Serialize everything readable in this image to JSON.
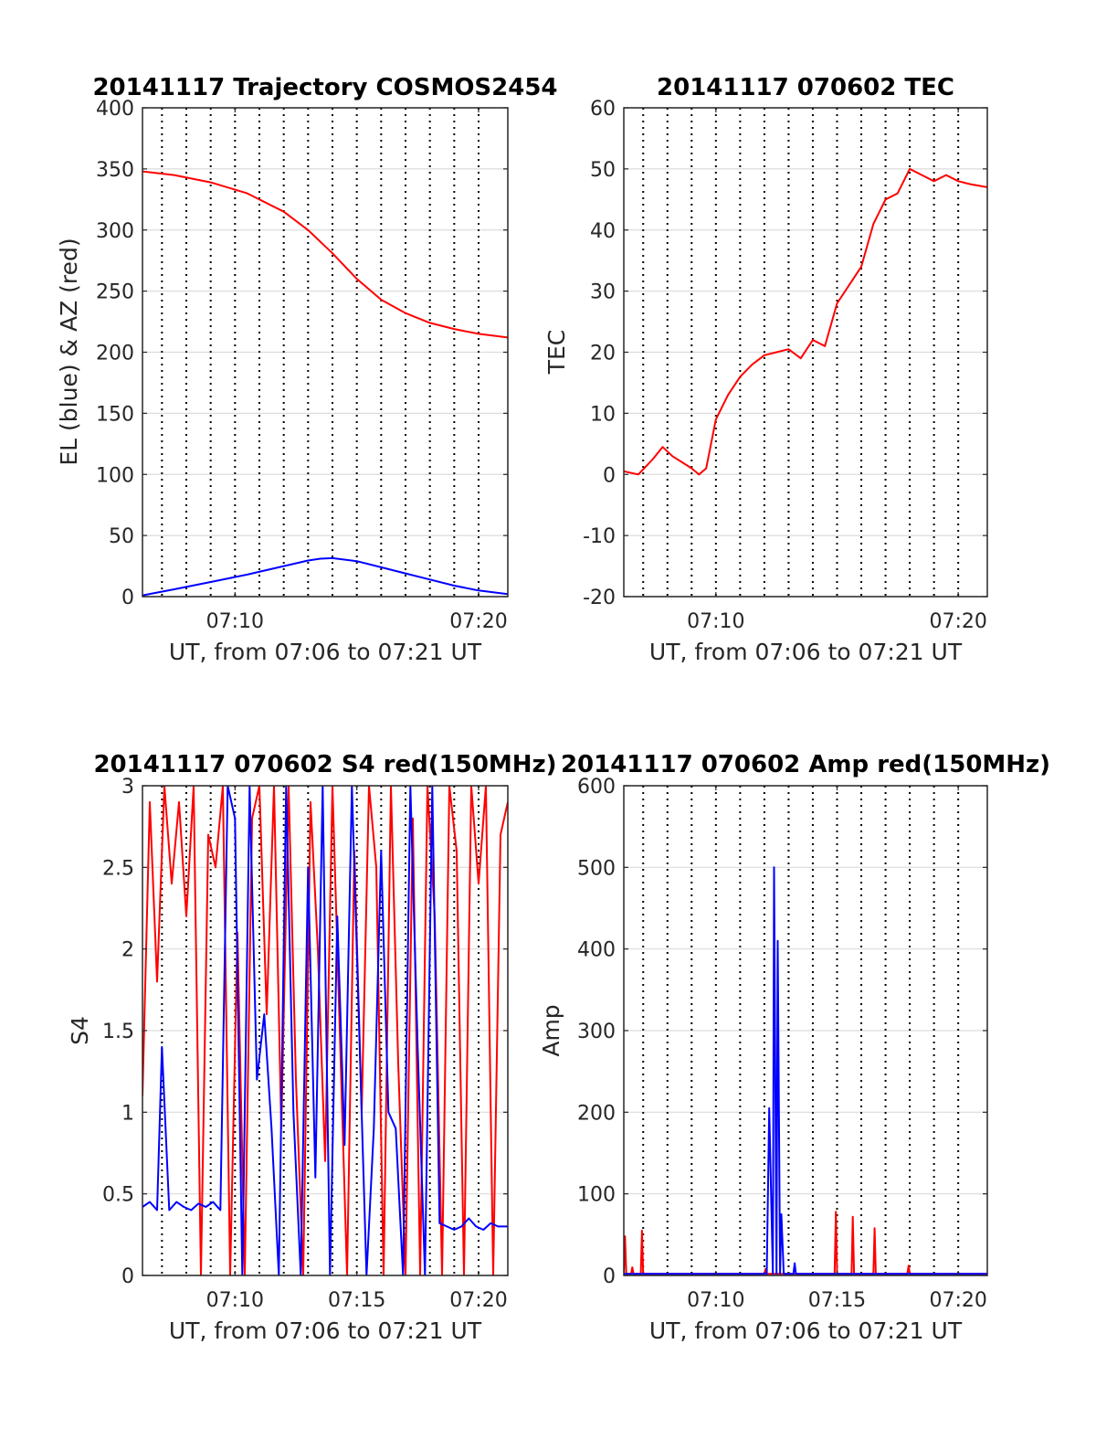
{
  "chart_data": [
    {
      "type": "line",
      "title": "20141117 Trajectory COSMOS2454",
      "xlabel": "UT, from 07:06 to 07:21 UT",
      "ylabel": "EL (blue) & AZ (red)",
      "xlim_minutes": [
        426.2,
        441.2
      ],
      "ylim": [
        0,
        400
      ],
      "yticks": [
        0,
        50,
        100,
        150,
        200,
        250,
        300,
        350,
        400
      ],
      "xticks": [
        {
          "minute": 430,
          "label": "07:10"
        },
        {
          "minute": 440,
          "label": "07:20"
        }
      ],
      "grid": true,
      "series": [
        {
          "color": "#ff0000",
          "x": [
            426.2,
            427.5,
            429,
            430.5,
            432,
            433,
            434,
            435,
            436,
            437,
            438,
            439,
            440,
            441.2
          ],
          "y": [
            348,
            345,
            339,
            330,
            315,
            300,
            281,
            260,
            243,
            232,
            224,
            219,
            215,
            212
          ]
        },
        {
          "color": "#0000ff",
          "x": [
            426.2,
            427.5,
            429,
            430.5,
            432,
            433,
            433.5,
            434,
            435,
            436,
            437,
            438,
            439,
            440,
            441.2
          ],
          "y": [
            1,
            6,
            12,
            18,
            25,
            29.5,
            31,
            31.5,
            29,
            24,
            19,
            14,
            9,
            5,
            2
          ]
        }
      ]
    },
    {
      "type": "line",
      "title": "20141117 070602 TEC",
      "xlabel": "UT, from 07:06 to 07:21 UT",
      "ylabel": "TEC",
      "xlim_minutes": [
        426.2,
        441.2
      ],
      "ylim": [
        -20,
        60
      ],
      "yticks": [
        -20,
        -10,
        0,
        10,
        20,
        30,
        40,
        50,
        60
      ],
      "xticks": [
        {
          "minute": 430,
          "label": "07:10"
        },
        {
          "minute": 440,
          "label": "07:20"
        }
      ],
      "grid": true,
      "series": [
        {
          "color": "#ff0000",
          "x": [
            426.2,
            426.8,
            427.4,
            427.8,
            428.2,
            428.6,
            429,
            429.3,
            429.6,
            430,
            430.5,
            431,
            431.5,
            432,
            432.5,
            433,
            433.5,
            434,
            434.5,
            435,
            435.5,
            436,
            436.5,
            437,
            437.5,
            438,
            438.5,
            439,
            439.5,
            440,
            440.5,
            441.2
          ],
          "y": [
            0.5,
            0,
            2.5,
            4.5,
            3,
            2,
            1,
            0,
            1,
            9,
            13,
            16,
            18,
            19.5,
            20,
            20.5,
            19,
            22,
            21,
            28,
            31,
            34,
            41,
            45,
            46,
            50,
            49,
            48,
            49,
            48,
            47.5,
            47
          ]
        }
      ]
    },
    {
      "type": "line",
      "title": "20141117 070602 S4 red(150MHz)",
      "xlabel": "UT, from 07:06 to 07:21 UT",
      "ylabel": "S4",
      "xlim_minutes": [
        426.2,
        441.2
      ],
      "ylim": [
        0,
        3
      ],
      "yticks": [
        0,
        0.5,
        1,
        1.5,
        2,
        2.5,
        3
      ],
      "xticks": [
        {
          "minute": 430,
          "label": "07:10"
        },
        {
          "minute": 435,
          "label": "07:15"
        },
        {
          "minute": 440,
          "label": "07:20"
        }
      ],
      "grid": true,
      "series": [
        {
          "color": "#ff0000",
          "x": [
            426.2,
            426.5,
            426.8,
            427.1,
            427.4,
            427.7,
            428.0,
            428.3,
            428.6,
            428.9,
            429.2,
            429.5,
            429.8,
            430.1,
            430.4,
            430.7,
            431.0,
            431.3,
            431.6,
            431.9,
            432.2,
            432.5,
            432.8,
            433.1,
            433.4,
            433.7,
            434.0,
            434.3,
            434.6,
            434.9,
            435.2,
            435.5,
            435.8,
            436.1,
            436.4,
            436.7,
            437.0,
            437.3,
            437.6,
            437.9,
            438.2,
            438.5,
            438.8,
            439.1,
            439.4,
            439.7,
            440.0,
            440.3,
            440.6,
            440.9,
            441.2
          ],
          "y": [
            1.1,
            2.9,
            1.8,
            3.0,
            2.4,
            2.9,
            2.2,
            3.0,
            0.0,
            2.7,
            2.5,
            3.0,
            0.0,
            2.1,
            0.0,
            2.8,
            3.0,
            1.6,
            3.0,
            0.9,
            3.0,
            1.2,
            0.0,
            2.9,
            2.0,
            0.7,
            3.0,
            1.5,
            0.0,
            2.6,
            1.0,
            3.0,
            2.5,
            0.0,
            3.0,
            1.3,
            0.0,
            2.8,
            0.0,
            3.0,
            2.2,
            0.0,
            3.0,
            2.6,
            0.0,
            3.0,
            2.4,
            3.0,
            0.0,
            2.7,
            2.9
          ]
        },
        {
          "color": "#0000ff",
          "x": [
            426.2,
            426.5,
            426.8,
            427.0,
            427.3,
            427.6,
            427.9,
            428.2,
            428.5,
            428.8,
            429.1,
            429.4,
            429.7,
            430.0,
            430.3,
            430.6,
            430.9,
            431.2,
            431.5,
            431.8,
            432.1,
            432.4,
            432.7,
            433.0,
            433.3,
            433.6,
            433.9,
            434.2,
            434.5,
            434.8,
            435.1,
            435.4,
            435.7,
            436.0,
            436.3,
            436.6,
            436.9,
            437.2,
            437.5,
            437.8,
            438.1,
            438.4,
            438.7,
            439.0,
            439.3,
            439.6,
            439.9,
            440.2,
            440.5,
            440.8,
            441.2
          ],
          "y": [
            0.42,
            0.45,
            0.4,
            1.4,
            0.4,
            0.45,
            0.42,
            0.4,
            0.44,
            0.42,
            0.45,
            0.4,
            3.0,
            2.8,
            0.0,
            3.0,
            1.2,
            1.6,
            0.9,
            0.0,
            3.0,
            1.0,
            0.0,
            2.5,
            0.6,
            3.0,
            0.0,
            2.2,
            0.8,
            3.0,
            1.5,
            0.0,
            0.9,
            2.6,
            1.0,
            0.9,
            0.0,
            3.0,
            1.4,
            0.0,
            3.0,
            0.32,
            0.3,
            0.28,
            0.3,
            0.35,
            0.3,
            0.28,
            0.32,
            0.3,
            0.3
          ]
        }
      ]
    },
    {
      "type": "line",
      "title": "20141117 070602 Amp red(150MHz)",
      "xlabel": "UT, from 07:06 to 07:21 UT",
      "ylabel": "Amp",
      "xlim_minutes": [
        426.2,
        441.2
      ],
      "ylim": [
        0,
        600
      ],
      "yticks": [
        0,
        100,
        200,
        300,
        400,
        500,
        600
      ],
      "xticks": [
        {
          "minute": 430,
          "label": "07:10"
        },
        {
          "minute": 435,
          "label": "07:15"
        },
        {
          "minute": 440,
          "label": "07:20"
        }
      ],
      "grid": true,
      "series": [
        {
          "color": "#ff0000",
          "x": [
            426.2,
            426.25,
            426.3,
            426.5,
            426.55,
            426.6,
            426.9,
            426.95,
            427.0,
            432.0,
            432.05,
            432.1,
            434.9,
            434.95,
            435.0,
            435.6,
            435.65,
            435.7,
            436.5,
            436.55,
            436.6,
            437.9,
            437.95,
            438.0,
            441.2
          ],
          "y": [
            2,
            48,
            2,
            2,
            10,
            2,
            2,
            55,
            2,
            2,
            8,
            2,
            2,
            78,
            2,
            2,
            72,
            2,
            2,
            58,
            2,
            2,
            12,
            2,
            2
          ]
        },
        {
          "color": "#0000ff",
          "x": [
            426.2,
            432.0,
            432.1,
            432.2,
            432.35,
            432.4,
            432.5,
            432.55,
            432.65,
            432.7,
            432.8,
            433.2,
            433.25,
            433.3,
            441.2
          ],
          "y": [
            2,
            2,
            2,
            205,
            2,
            500,
            2,
            410,
            2,
            75,
            2,
            2,
            15,
            2,
            2
          ]
        }
      ]
    }
  ]
}
